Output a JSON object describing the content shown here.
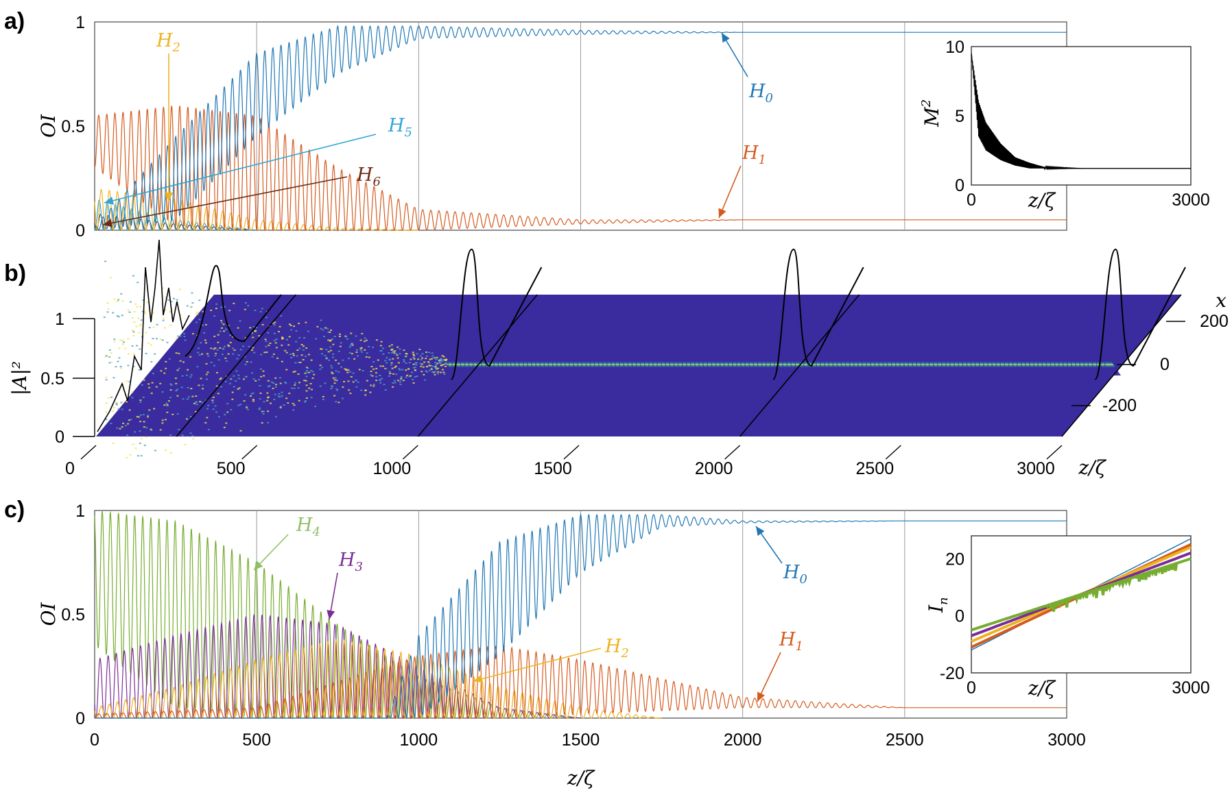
{
  "colors": {
    "H0": "#1f77b4",
    "H1": "#d45a1e",
    "H2": "#efb21f",
    "H3": "#7a2d96",
    "H4": "#76ac2f",
    "H5": "#2fa5d8",
    "H6": "#6b2a10",
    "heat_bg": "#3a2b9e",
    "heat_hi": "#f5e44a"
  },
  "chart_data": [
    {
      "id": "a",
      "panel_label": "a)",
      "type": "line",
      "xlim": [
        0,
        3000
      ],
      "ylim": [
        0,
        1
      ],
      "xlabel": "",
      "ylabel": "OI",
      "yticks": [
        "0",
        "0.5",
        "1"
      ],
      "grid": "vertical lines at 500-steps",
      "series": [
        {
          "name": "H0",
          "label_main": "H",
          "label_sub": "0",
          "envelope_x": [
            0,
            250,
            500,
            750,
            1000,
            1500,
            2000,
            2500,
            3000
          ],
          "envelope_max": [
            0.02,
            0.45,
            0.85,
            0.98,
            0.98,
            0.96,
            0.95,
            0.95,
            0.95
          ],
          "envelope_min": [
            0.0,
            0.05,
            0.45,
            0.75,
            0.92,
            0.94,
            0.95,
            0.95,
            0.95
          ]
        },
        {
          "name": "H1",
          "label_main": "H",
          "label_sub": "1",
          "envelope_x": [
            0,
            250,
            500,
            750,
            1000,
            1500,
            2000,
            2500,
            3000
          ],
          "envelope_max": [
            0.55,
            0.6,
            0.55,
            0.3,
            0.1,
            0.05,
            0.05,
            0.05,
            0.05
          ],
          "envelope_min": [
            0.3,
            0.02,
            0.0,
            0.0,
            0.0,
            0.03,
            0.05,
            0.05,
            0.05
          ]
        },
        {
          "name": "H2",
          "label_main": "H",
          "label_sub": "2",
          "envelope_x": [
            0,
            250,
            500,
            750,
            1000
          ],
          "envelope_max": [
            0.2,
            0.15,
            0.05,
            0.01,
            0.0
          ],
          "envelope_min": [
            0,
            0,
            0,
            0,
            0
          ]
        },
        {
          "name": "H5",
          "label_main": "H",
          "label_sub": "5",
          "envelope_x": [
            0,
            250,
            500
          ],
          "envelope_max": [
            0.15,
            0.05,
            0.0
          ],
          "envelope_min": [
            0,
            0,
            0
          ]
        },
        {
          "name": "H6",
          "label_main": "H",
          "label_sub": "6",
          "envelope_x": [
            0,
            250,
            500
          ],
          "envelope_max": [
            0.08,
            0.03,
            0.0
          ],
          "envelope_min": [
            0,
            0,
            0
          ]
        }
      ],
      "inset": {
        "type": "line",
        "xlim": [
          0,
          3000
        ],
        "ylim": [
          0,
          10
        ],
        "xlabel": "z/ζ",
        "ylabel_main": "M",
        "ylabel_sup": "2",
        "xticks": [
          "0",
          "3000"
        ],
        "yticks": [
          "0",
          "5",
          "10"
        ],
        "series": [
          {
            "x": [
              0,
              100,
              200,
              400,
              600,
              800,
              1000,
              1500,
              3000
            ],
            "y_max": [
              9.5,
              6,
              4.5,
              3,
              2,
              1.6,
              1.3,
              1.2,
              1.2
            ],
            "y_min": [
              9.5,
              3.5,
              2.5,
              1.8,
              1.4,
              1.2,
              1.2,
              1.2,
              1.2
            ]
          }
        ]
      }
    },
    {
      "id": "b",
      "panel_label": "b)",
      "type": "heatmap",
      "z_label": "|A|²",
      "z_ticks": [
        "0",
        "0.5",
        "1"
      ],
      "x_label": "z/ζ",
      "x_ticks": [
        "0",
        "500",
        "1000",
        "1500",
        "2000",
        "2500",
        "3000"
      ],
      "y_label": "x",
      "y_ticks": [
        "200",
        "0",
        "-200"
      ],
      "slices_at": [
        0,
        500,
        1000,
        2000,
        3000
      ],
      "description_values": {
        "beam_center_x": 0,
        "converged_from_z": 1000
      }
    },
    {
      "id": "c",
      "panel_label": "c)",
      "type": "line",
      "xlim": [
        0,
        3000
      ],
      "ylim": [
        0,
        1
      ],
      "xlabel": "z/ζ",
      "ylabel": "OI",
      "xticks": [
        "0",
        "500",
        "1000",
        "1500",
        "2000",
        "2500",
        "3000"
      ],
      "yticks": [
        "0",
        "0.5",
        "1"
      ],
      "grid": "vertical lines at 500-steps",
      "series": [
        {
          "name": "H4",
          "label_main": "H",
          "label_sub": "4",
          "envelope_x": [
            0,
            250,
            500,
            750,
            1000,
            1250,
            1500
          ],
          "envelope_max": [
            1.0,
            0.95,
            0.75,
            0.45,
            0.2,
            0.05,
            0.0
          ],
          "envelope_min": [
            0.35,
            0.05,
            0.0,
            0.0,
            0.0,
            0.0,
            0.0
          ]
        },
        {
          "name": "H3",
          "label_main": "H",
          "label_sub": "3",
          "envelope_x": [
            0,
            250,
            500,
            750,
            1000,
            1250,
            1500
          ],
          "envelope_max": [
            0.28,
            0.4,
            0.5,
            0.45,
            0.25,
            0.05,
            0.0
          ],
          "envelope_min": [
            0.0,
            0.0,
            0.0,
            0.0,
            0.0,
            0.0,
            0.0
          ]
        },
        {
          "name": "H2",
          "label_main": "H",
          "label_sub": "2",
          "envelope_x": [
            0,
            250,
            500,
            750,
            1000,
            1250,
            1500,
            1750
          ],
          "envelope_max": [
            0.05,
            0.15,
            0.28,
            0.38,
            0.3,
            0.15,
            0.05,
            0.0
          ],
          "envelope_min": [
            0,
            0,
            0,
            0,
            0,
            0,
            0,
            0
          ]
        },
        {
          "name": "H1",
          "label_main": "H",
          "label_sub": "1",
          "envelope_x": [
            0,
            500,
            1000,
            1250,
            1500,
            2000,
            2500,
            3000
          ],
          "envelope_max": [
            0.02,
            0.05,
            0.3,
            0.35,
            0.28,
            0.1,
            0.05,
            0.05
          ],
          "envelope_min": [
            0.0,
            0.0,
            0.0,
            0.0,
            0.02,
            0.05,
            0.05,
            0.05
          ]
        },
        {
          "name": "H0",
          "label_main": "H",
          "label_sub": "0",
          "envelope_x": [
            0,
            900,
            1000,
            1250,
            1500,
            1750,
            2000,
            2500,
            3000
          ],
          "envelope_max": [
            0.0,
            0.0,
            0.4,
            0.85,
            0.98,
            0.98,
            0.95,
            0.95,
            0.95
          ],
          "envelope_min": [
            0.0,
            0.0,
            0.0,
            0.3,
            0.7,
            0.92,
            0.94,
            0.95,
            0.95
          ]
        }
      ],
      "inset": {
        "type": "line",
        "xlim": [
          0,
          3000
        ],
        "ylim": [
          -20,
          28
        ],
        "xlabel": "z/ζ",
        "ylabel_main": "I",
        "ylabel_sub": "n",
        "xticks": [
          "0",
          "3000"
        ],
        "yticks": [
          "20",
          "0",
          "-20"
        ],
        "series": [
          {
            "color": "H0",
            "x": [
              0,
              3000
            ],
            "y": [
              -12,
              27
            ]
          },
          {
            "color": "H1",
            "x": [
              0,
              3000
            ],
            "y": [
              -11,
              25
            ]
          },
          {
            "color": "H2",
            "x": [
              0,
              3000
            ],
            "y": [
              -9,
              24
            ]
          },
          {
            "color": "H3",
            "x": [
              0,
              3000
            ],
            "y": [
              -7,
              22
            ]
          },
          {
            "color": "H4",
            "x": [
              0,
              3000
            ],
            "y": [
              -5,
              20
            ]
          }
        ]
      }
    }
  ]
}
